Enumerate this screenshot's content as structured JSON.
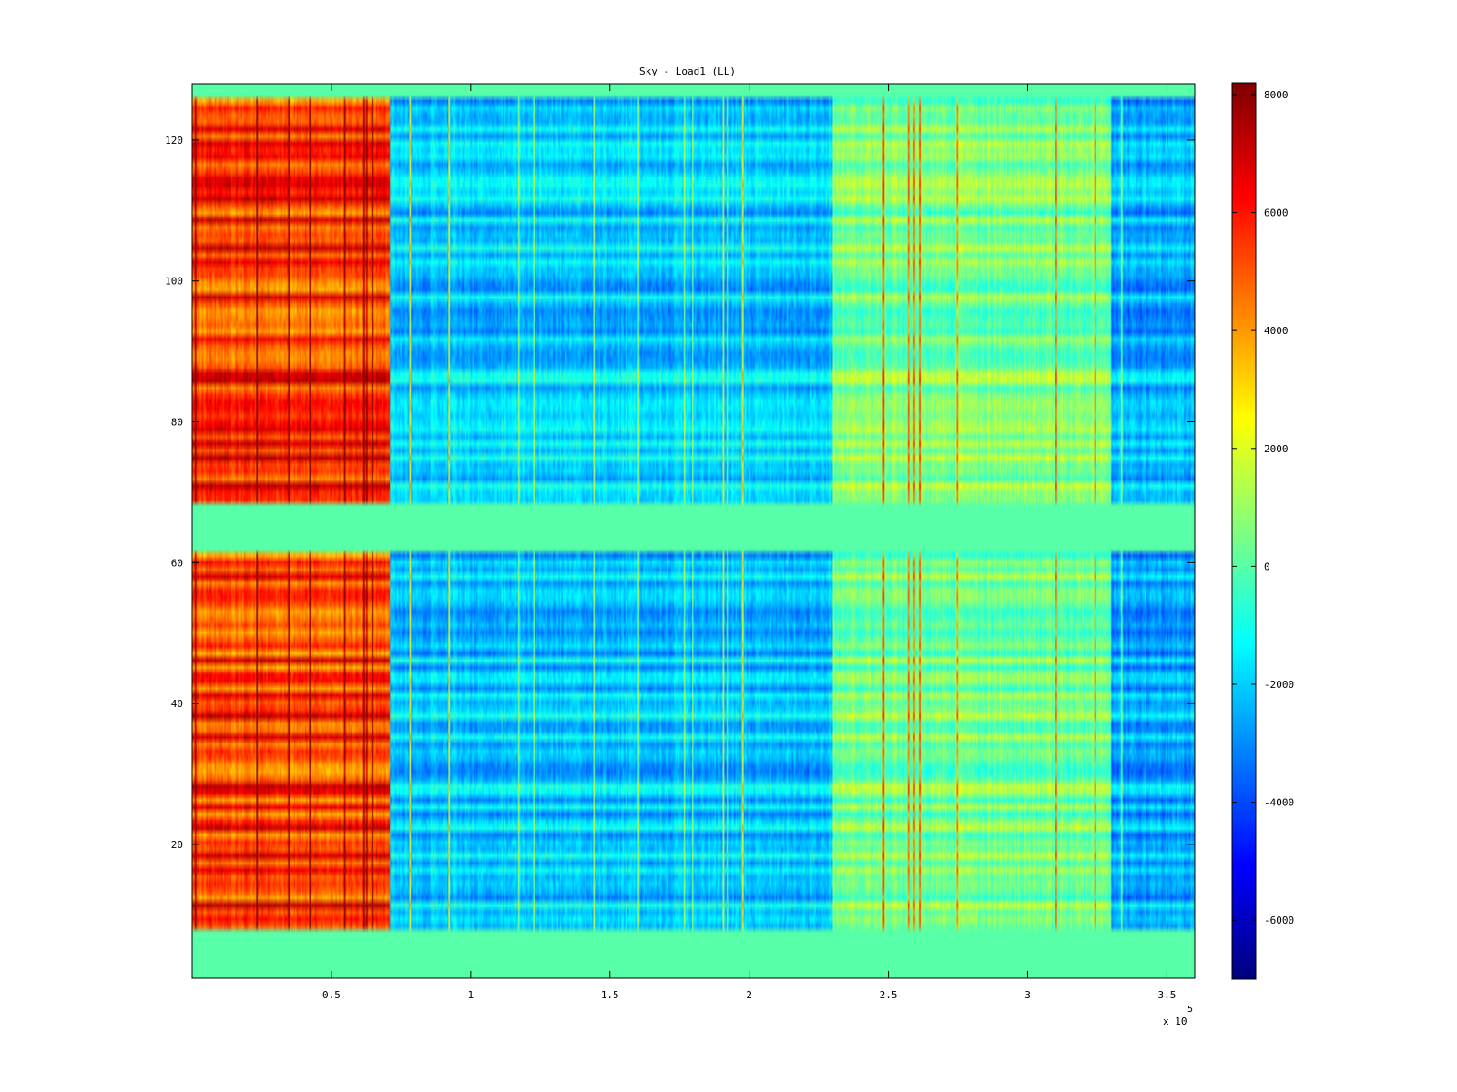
{
  "chart_data": {
    "type": "heatmap",
    "title": "Sky - Load1 (LL)",
    "xlabel": "",
    "ylabel": "",
    "xlim": [
      0,
      360000
    ],
    "ylim": [
      1,
      128
    ],
    "x_ticks": [
      50000,
      100000,
      150000,
      200000,
      250000,
      300000,
      350000
    ],
    "x_tick_labels": [
      "0.5",
      "1",
      "1.5",
      "2",
      "2.5",
      "3",
      "3.5"
    ],
    "x_multiplier_label": "x 10",
    "x_multiplier_exponent": "5",
    "y_ticks": [
      20,
      40,
      60,
      80,
      100,
      120
    ],
    "y_tick_labels": [
      "20",
      "40",
      "60",
      "80",
      "100",
      "120"
    ],
    "colorbar": {
      "clim": [
        -7000,
        8200
      ],
      "ticks": [
        8000,
        6000,
        4000,
        2000,
        0,
        -2000,
        -4000,
        -6000
      ],
      "tick_labels": [
        "8000",
        "6000",
        "4000",
        "2000",
        "0",
        "-2000",
        "-4000",
        "-6000"
      ],
      "colormap": "jet"
    },
    "regions": [
      {
        "description_x_range": [
          0,
          71000
        ],
        "y_range": [
          8,
          126
        ],
        "approx_value": 5500
      },
      {
        "description_x_range": [
          71000,
          230000
        ],
        "y_range": [
          8,
          126
        ],
        "approx_value": -2000
      },
      {
        "description_x_range": [
          230000,
          330000
        ],
        "y_range": [
          8,
          126
        ],
        "approx_value": 500
      },
      {
        "description_x_range": [
          330000,
          360000
        ],
        "y_range": [
          8,
          126
        ],
        "approx_value": -2500
      }
    ],
    "blank_rows": [
      [
        1,
        8
      ],
      [
        62,
        68
      ],
      [
        126,
        128
      ]
    ],
    "blank_value": 0
  }
}
